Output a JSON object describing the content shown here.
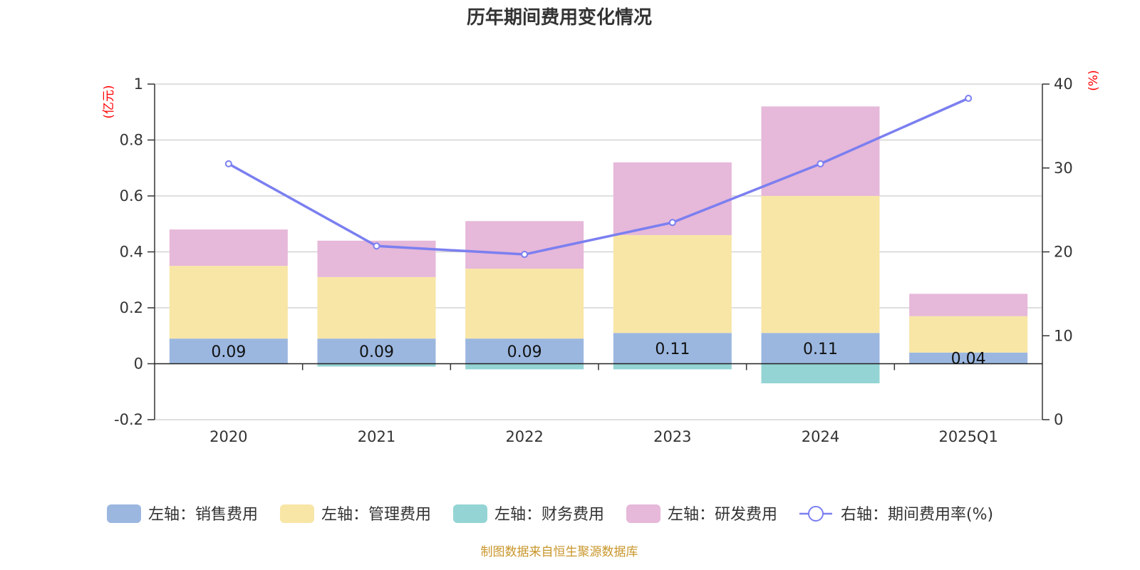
{
  "chart_data": {
    "type": "bar",
    "title": "历年期间费用变化情况",
    "categories": [
      "2020",
      "2021",
      "2022",
      "2023",
      "2024",
      "2025Q1"
    ],
    "series": [
      {
        "name": "左轴：销售费用",
        "axis": "left",
        "color": "#9bb7e0",
        "values": [
          0.09,
          0.09,
          0.09,
          0.11,
          0.11,
          0.04
        ]
      },
      {
        "name": "左轴：管理费用",
        "axis": "left",
        "color": "#f8e6a6",
        "values": [
          0.26,
          0.22,
          0.25,
          0.35,
          0.49,
          0.13
        ]
      },
      {
        "name": "左轴：财务费用",
        "axis": "left",
        "color": "#94d4d4",
        "values": [
          0.0,
          -0.01,
          -0.02,
          -0.02,
          -0.07,
          0.0
        ]
      },
      {
        "name": "左轴：研发费用",
        "axis": "left",
        "color": "#e6b8d9",
        "values": [
          0.13,
          0.13,
          0.17,
          0.26,
          0.32,
          0.08
        ]
      },
      {
        "name": "右轴：期间费用率(%)",
        "axis": "right",
        "type": "line",
        "color": "#7b7ff0",
        "values": [
          30.5,
          20.7,
          19.7,
          23.5,
          30.5,
          38.3
        ]
      }
    ],
    "data_labels": [
      "0.09",
      "0.09",
      "0.09",
      "0.11",
      "0.11",
      "0.04"
    ],
    "left_axis": {
      "label": "(亿元)",
      "min": -0.2,
      "max": 1,
      "ticks": [
        "-0.2",
        "0",
        "0.2",
        "0.4",
        "0.6",
        "0.8",
        "1"
      ]
    },
    "right_axis": {
      "label": "(%)",
      "min": 0,
      "max": 40,
      "ticks": [
        "0",
        "10",
        "20",
        "30",
        "40"
      ]
    },
    "legend_position": "bottom",
    "grid": true
  },
  "source": "制图数据来自恒生聚源数据库"
}
